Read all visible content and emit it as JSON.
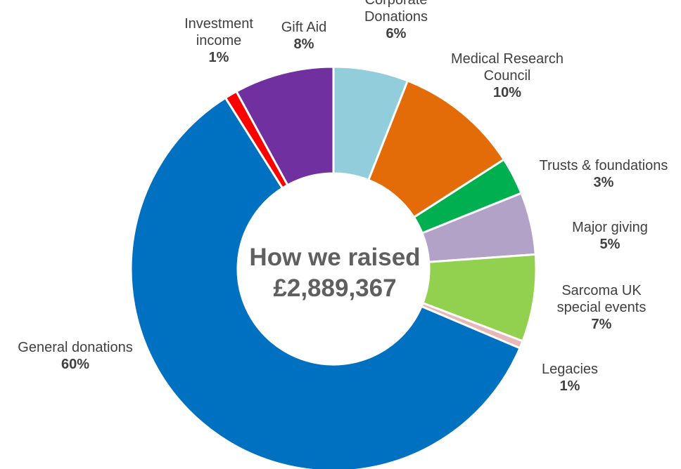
{
  "chart_data": {
    "type": "pie",
    "variant": "donut",
    "center_text": [
      "How we raised",
      "£2,889,367"
    ],
    "slices": [
      {
        "label": [
          "Corporate",
          "Donations"
        ],
        "value": 6,
        "display": "6%",
        "color": "#92cddc"
      },
      {
        "label": [
          "Medical Research",
          "Council"
        ],
        "value": 10,
        "display": "10%",
        "color": "#e36c09"
      },
      {
        "label": [
          "Trusts & foundations"
        ],
        "value": 3,
        "display": "3%",
        "color": "#00b050"
      },
      {
        "label": [
          "Major giving"
        ],
        "value": 5,
        "display": "5%",
        "color": "#b2a2c7"
      },
      {
        "label": [
          "Sarcoma UK",
          "special events"
        ],
        "value": 7,
        "display": "7%",
        "color": "#92d050"
      },
      {
        "label": [
          "Legacies"
        ],
        "value": 0.6,
        "display": "1%",
        "color": "#e6b9b8"
      },
      {
        "label": [
          "General donations"
        ],
        "value": 60,
        "display": "60%",
        "color": "#0070c0"
      },
      {
        "label": [
          "Investment",
          "income"
        ],
        "value": 1,
        "display": "1%",
        "color": "#ff0000"
      },
      {
        "label": [
          "Gift Aid"
        ],
        "value": 8,
        "display": "8%",
        "color": "#7030a0"
      }
    ]
  }
}
